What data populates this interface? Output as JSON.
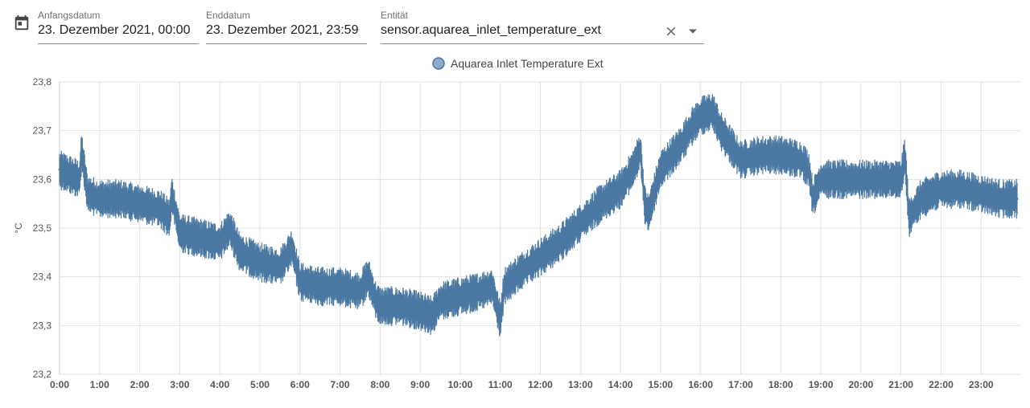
{
  "filters": {
    "start": {
      "label": "Anfangsdatum",
      "value": "23. Dezember 2021, 00:00"
    },
    "end": {
      "label": "Enddatum",
      "value": "23. Dezember 2021, 23:59"
    },
    "entity": {
      "label": "Entität",
      "value": "sensor.aquarea_inlet_temperature_ext"
    }
  },
  "icons": {
    "date": "calendar-icon",
    "clear": "close-icon",
    "dropdown": "dropdown-arrow-icon"
  },
  "chart_data": {
    "type": "line",
    "title": "",
    "xlabel": "",
    "ylabel": "°C",
    "ylim": [
      23.2,
      23.8
    ],
    "xlim": [
      0,
      24
    ],
    "grid": true,
    "legend": "top-center",
    "color": "#4a78a2",
    "yticks": [
      "23,2",
      "23,3",
      "23,4",
      "23,5",
      "23,6",
      "23,7",
      "23,8"
    ],
    "xticks": [
      "0:00",
      "1:00",
      "2:00",
      "3:00",
      "4:00",
      "5:00",
      "6:00",
      "7:00",
      "8:00",
      "9:00",
      "10:00",
      "11:00",
      "12:00",
      "13:00",
      "14:00",
      "15:00",
      "16:00",
      "17:00",
      "18:00",
      "19:00",
      "20:00",
      "21:00",
      "22:00",
      "23:00"
    ],
    "series": [
      {
        "name": "Aquarea Inlet Temperature Ext",
        "x": [
          0,
          0.25,
          0.5,
          0.55,
          0.7,
          1,
          1.5,
          2,
          2.5,
          2.75,
          2.8,
          3,
          3.5,
          4,
          4.25,
          4.5,
          5,
          5.5,
          5.8,
          6,
          6.5,
          7,
          7.5,
          7.7,
          7.9,
          8,
          8.5,
          9,
          9.3,
          9.5,
          10,
          10.5,
          10.8,
          11,
          11.1,
          11.5,
          12,
          12.5,
          13,
          13.5,
          14,
          14.3,
          14.5,
          14.6,
          14.7,
          15,
          15.5,
          15.8,
          16,
          16.3,
          16.5,
          17,
          17.5,
          18,
          18.5,
          18.7,
          18.8,
          19,
          19.5,
          20,
          20.5,
          21,
          21.1,
          21.2,
          21.5,
          22,
          22.5,
          23,
          23.5,
          23.9
        ],
        "values": [
          23.62,
          23.61,
          23.6,
          23.66,
          23.57,
          23.56,
          23.56,
          23.55,
          23.54,
          23.52,
          23.57,
          23.49,
          23.48,
          23.47,
          23.5,
          23.45,
          23.43,
          23.42,
          23.46,
          23.39,
          23.38,
          23.38,
          23.37,
          23.4,
          23.35,
          23.34,
          23.34,
          23.33,
          23.32,
          23.35,
          23.36,
          23.37,
          23.38,
          23.31,
          23.38,
          23.41,
          23.44,
          23.47,
          23.51,
          23.55,
          23.58,
          23.62,
          23.66,
          23.55,
          23.53,
          23.62,
          23.67,
          23.71,
          23.73,
          23.74,
          23.7,
          23.64,
          23.65,
          23.65,
          23.64,
          23.62,
          23.56,
          23.6,
          23.6,
          23.6,
          23.6,
          23.6,
          23.65,
          23.52,
          23.56,
          23.58,
          23.58,
          23.57,
          23.56,
          23.56
        ]
      }
    ]
  }
}
